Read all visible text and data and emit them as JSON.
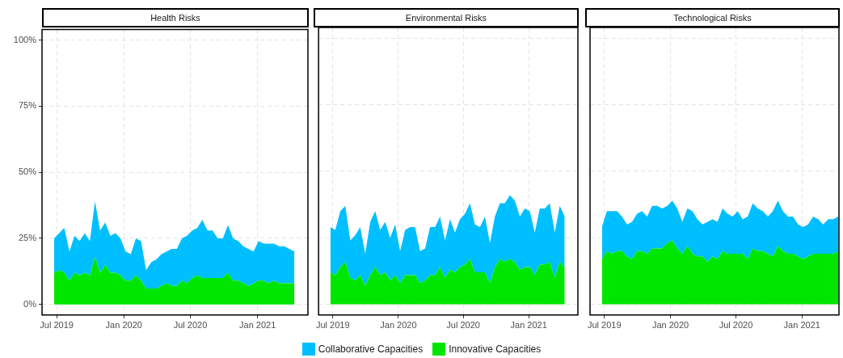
{
  "chart_data": [
    {
      "type": "area",
      "title": "Health Risks",
      "stacked": true,
      "grid": true,
      "legend": "bottom",
      "x": [
        "2019-06-24",
        "2019-07-08",
        "2019-07-22",
        "2019-08-05",
        "2019-08-19",
        "2019-09-02",
        "2019-09-16",
        "2019-09-30",
        "2019-10-14",
        "2019-10-28",
        "2019-11-11",
        "2019-11-25",
        "2019-12-09",
        "2019-12-23",
        "2020-01-06",
        "2020-01-20",
        "2020-02-03",
        "2020-02-17",
        "2020-03-02",
        "2020-03-16",
        "2020-03-30",
        "2020-04-13",
        "2020-04-27",
        "2020-05-11",
        "2020-05-25",
        "2020-06-08",
        "2020-06-22",
        "2020-07-06",
        "2020-07-20",
        "2020-08-03",
        "2020-08-17",
        "2020-08-31",
        "2020-09-14",
        "2020-09-28",
        "2020-10-12",
        "2020-10-26",
        "2020-11-09",
        "2020-11-23",
        "2020-12-07",
        "2020-12-21",
        "2021-01-04",
        "2021-01-18",
        "2021-02-01",
        "2021-02-15",
        "2021-03-01",
        "2021-03-15",
        "2021-03-29",
        "2021-04-12"
      ],
      "xlim": [
        "2019-05-22",
        "2021-05-19"
      ],
      "xticks": [
        {
          "value": "2019-07-01",
          "label": "Jul 2019"
        },
        {
          "value": "2020-01-01",
          "label": "Jan 2020"
        },
        {
          "value": "2020-07-01",
          "label": "Jul 2020"
        },
        {
          "value": "2021-01-01",
          "label": "Jan 2021"
        }
      ],
      "ylim": [
        -4,
        104
      ],
      "yticks": [
        {
          "value": 0,
          "label": "0%"
        },
        {
          "value": 25,
          "label": "25%"
        },
        {
          "value": 50,
          "label": "50%"
        },
        {
          "value": 75,
          "label": "75%"
        },
        {
          "value": 100,
          "label": "100%"
        }
      ],
      "series": [
        {
          "name": "Innovative Capacities",
          "color": "#00e600",
          "values": [
            12,
            13,
            12,
            9,
            12,
            11,
            12,
            11,
            18,
            12,
            15,
            12,
            12,
            11,
            9,
            9,
            11,
            9,
            6,
            6,
            6,
            7,
            8,
            7,
            7,
            9,
            8,
            10,
            11,
            10,
            10,
            10,
            10,
            10,
            12,
            9,
            9,
            8,
            7,
            8,
            9,
            9,
            8,
            9,
            8,
            8,
            8,
            8
          ]
        },
        {
          "name": "Collaborative Capacities",
          "color": "#00bfff",
          "values": [
            13,
            14,
            17,
            11,
            14,
            13,
            15,
            13,
            21,
            16,
            16,
            14,
            15,
            14,
            11,
            10,
            14,
            15,
            7,
            10,
            11,
            12,
            12,
            14,
            14,
            16,
            18,
            18,
            18,
            22,
            18,
            18,
            15,
            15,
            18,
            16,
            15,
            14,
            14,
            12,
            15,
            14,
            15,
            14,
            14,
            14,
            13,
            12
          ]
        }
      ]
    },
    {
      "type": "area",
      "title": "Environmental Risks",
      "stacked": true,
      "grid": true,
      "tick_labels": "x",
      "x": [
        "2019-06-24",
        "2019-07-08",
        "2019-07-22",
        "2019-08-05",
        "2019-08-19",
        "2019-09-02",
        "2019-09-16",
        "2019-09-30",
        "2019-10-14",
        "2019-10-28",
        "2019-11-11",
        "2019-11-25",
        "2019-12-09",
        "2019-12-23",
        "2020-01-06",
        "2020-01-20",
        "2020-02-03",
        "2020-02-17",
        "2020-03-02",
        "2020-03-16",
        "2020-03-30",
        "2020-04-13",
        "2020-04-27",
        "2020-05-11",
        "2020-05-25",
        "2020-06-08",
        "2020-06-22",
        "2020-07-06",
        "2020-07-20",
        "2020-08-03",
        "2020-08-17",
        "2020-08-31",
        "2020-09-14",
        "2020-09-28",
        "2020-10-12",
        "2020-10-26",
        "2020-11-09",
        "2020-11-23",
        "2020-12-07",
        "2020-12-21",
        "2021-01-04",
        "2021-01-18",
        "2021-02-01",
        "2021-02-15",
        "2021-03-01",
        "2021-03-15",
        "2021-03-29",
        "2021-04-12"
      ],
      "xlim": [
        "2019-05-22",
        "2021-05-19"
      ],
      "xticks": [
        {
          "value": "2019-07-01",
          "label": "Jul 2019"
        },
        {
          "value": "2020-01-01",
          "label": "Jan 2020"
        },
        {
          "value": "2020-07-01",
          "label": "Jul 2020"
        },
        {
          "value": "2021-01-01",
          "label": "Jan 2021"
        }
      ],
      "ylim": [
        -4,
        104
      ],
      "yticks": [
        0,
        25,
        50,
        75,
        100
      ],
      "series": [
        {
          "color": "#00e600",
          "values": [
            12,
            11,
            14,
            16,
            10,
            9,
            11,
            7,
            11,
            14,
            11,
            12,
            9,
            11,
            8,
            11,
            11,
            11,
            8,
            9,
            11,
            11,
            14,
            10,
            13,
            12,
            14,
            15,
            17,
            12,
            12,
            12,
            8,
            14,
            17,
            16,
            17,
            16,
            13,
            14,
            14,
            11,
            15,
            15,
            16,
            10,
            16,
            14
          ]
        },
        {
          "color": "#00bfff",
          "values": [
            17,
            17,
            21,
            21,
            14,
            17,
            18,
            12,
            20,
            21,
            17,
            19,
            16,
            19,
            12,
            17,
            18,
            18,
            12,
            12,
            18,
            18,
            19,
            14,
            19,
            15,
            18,
            19,
            21,
            18,
            17,
            21,
            15,
            19,
            21,
            22,
            24,
            23,
            20,
            22,
            21,
            16,
            21,
            21,
            22,
            17,
            21,
            19
          ]
        }
      ]
    },
    {
      "type": "area",
      "title": "Technological Risks",
      "stacked": true,
      "grid": true,
      "tick_labels": "x",
      "x": [
        "2019-06-24",
        "2019-07-08",
        "2019-07-22",
        "2019-08-05",
        "2019-08-19",
        "2019-09-02",
        "2019-09-16",
        "2019-09-30",
        "2019-10-14",
        "2019-10-28",
        "2019-11-11",
        "2019-11-25",
        "2019-12-09",
        "2019-12-23",
        "2020-01-06",
        "2020-01-20",
        "2020-02-03",
        "2020-02-17",
        "2020-03-02",
        "2020-03-16",
        "2020-03-30",
        "2020-04-13",
        "2020-04-27",
        "2020-05-11",
        "2020-05-25",
        "2020-06-08",
        "2020-06-22",
        "2020-07-06",
        "2020-07-20",
        "2020-08-03",
        "2020-08-17",
        "2020-08-31",
        "2020-09-14",
        "2020-09-28",
        "2020-10-12",
        "2020-10-26",
        "2020-11-09",
        "2020-11-23",
        "2020-12-07",
        "2020-12-21",
        "2021-01-04",
        "2021-01-18",
        "2021-02-01",
        "2021-02-15",
        "2021-03-01",
        "2021-03-15",
        "2021-03-29",
        "2021-04-12"
      ],
      "xlim": [
        "2019-05-22",
        "2021-04-14"
      ],
      "xticks": [
        {
          "value": "2019-07-01",
          "label": "Jul 2019"
        },
        {
          "value": "2020-01-01",
          "label": "Jan 2020"
        },
        {
          "value": "2020-07-01",
          "label": "Jul 2020"
        },
        {
          "value": "2021-01-01",
          "label": "Jan 2021"
        }
      ],
      "ylim": [
        -4,
        104
      ],
      "yticks": [
        0,
        25,
        50,
        75,
        100
      ],
      "series": [
        {
          "color": "#00e600",
          "values": [
            17,
            20,
            19,
            20,
            20,
            18,
            17,
            20,
            20,
            19,
            21,
            21,
            21,
            23,
            24,
            21,
            19,
            22,
            19,
            18,
            18,
            16,
            18,
            17,
            20,
            19,
            19,
            19,
            19,
            17,
            21,
            20,
            20,
            19,
            18,
            22,
            20,
            19,
            19,
            18,
            17,
            18,
            19,
            19,
            19,
            19,
            19,
            20
          ]
        },
        {
          "color": "#00bfff",
          "values": [
            12,
            15,
            16,
            15,
            13,
            12,
            14,
            14,
            15,
            14,
            16,
            16,
            15,
            14,
            15,
            15,
            12,
            14,
            16,
            14,
            12,
            15,
            14,
            14,
            16,
            15,
            14,
            16,
            13,
            16,
            17,
            16,
            15,
            14,
            17,
            17,
            15,
            14,
            14,
            12,
            12,
            12,
            14,
            13,
            11,
            13,
            13,
            13
          ]
        }
      ]
    }
  ]
}
